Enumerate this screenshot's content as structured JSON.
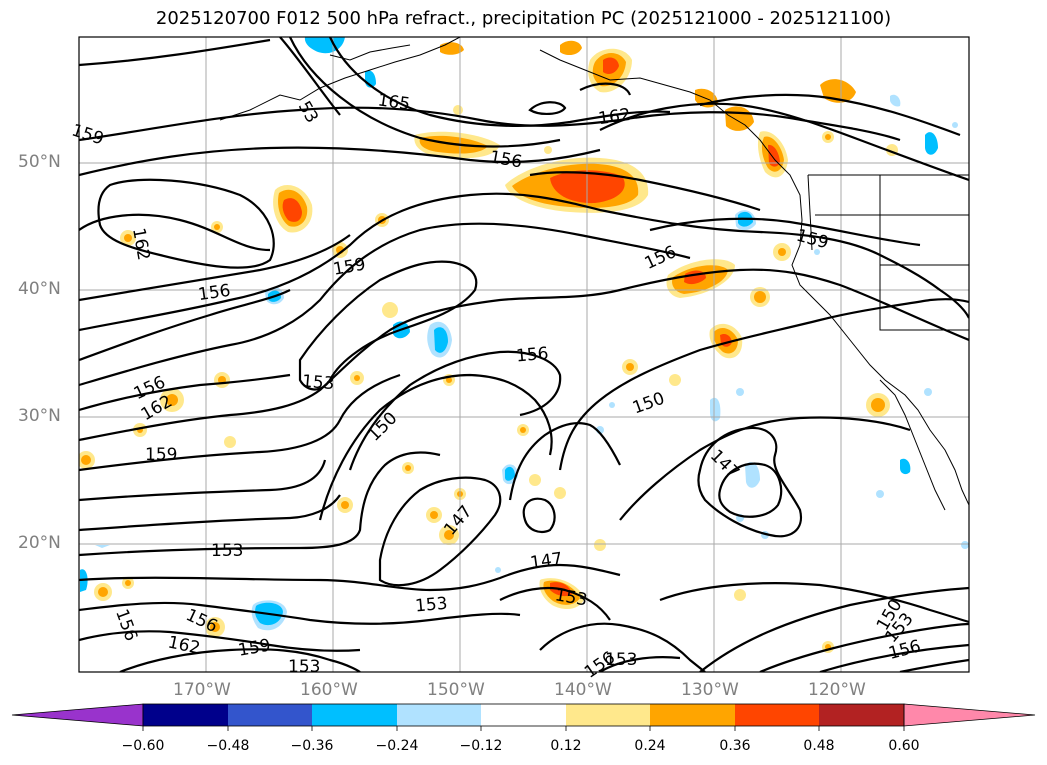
{
  "title": "2025120700 F012 500 hPa refract., precipitation PC (2025121000 - 2025121100)",
  "lat_labels": [
    "50°N",
    "40°N",
    "30°N",
    "20°N"
  ],
  "lon_labels": [
    "170°W",
    "160°W",
    "150°W",
    "140°W",
    "130°W",
    "120°W"
  ],
  "contour_labels": [
    "165",
    "162",
    "159",
    "156",
    "156",
    "162",
    "159",
    "156",
    "159",
    "156",
    "153",
    "150",
    "156",
    "162",
    "159",
    "150",
    "147",
    "153",
    "147",
    "147",
    "153",
    "153",
    "153",
    "150",
    "153",
    "156",
    "156",
    "162",
    "159",
    "156",
    "156",
    "153"
  ],
  "colorbar": {
    "ticks": [
      "−0.60",
      "−0.48",
      "−0.36",
      "−0.24",
      "−0.12",
      "0.12",
      "0.24",
      "0.36",
      "0.48",
      "0.60"
    ],
    "colors": [
      "#9933cc",
      "#00008b",
      "#3355cc",
      "#00bfff",
      "#b0e2ff",
      "#ffffff",
      "#ffe88c",
      "#ffa500",
      "#ff4500",
      "#b22222",
      "#ff88aa"
    ]
  }
}
